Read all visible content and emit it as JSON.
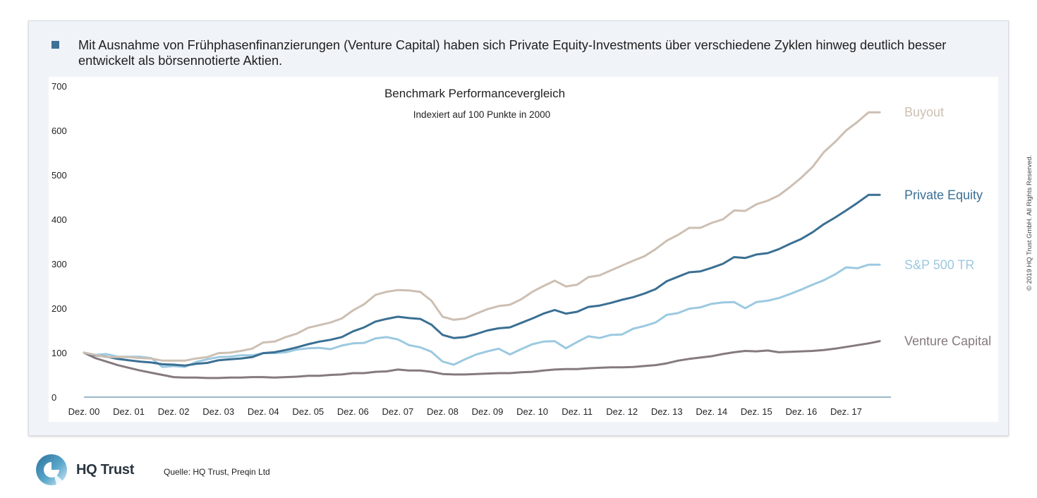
{
  "bullet": {
    "text": "Mit Ausnahme von Frühphasenfinanzierungen (Venture Capital) haben sich Private Equity-Investments über verschiedene Zyklen hinweg deutlich besser entwickelt als börsennotierte Aktien."
  },
  "copyright": "© 2019 HQ Trust GmbH. All Rights Reserved.",
  "logo": {
    "text": "HQ Trust"
  },
  "source": "Quelle: HQ Trust, Preqin Ltd",
  "chart_data": {
    "type": "line",
    "title": "Benchmark Performancevergleich",
    "subtitle": "Indexiert auf 100 Punkte in 2000",
    "ylim": [
      0,
      700
    ],
    "yticks": [
      0,
      100,
      200,
      300,
      400,
      500,
      600,
      700
    ],
    "x_range": [
      0,
      18
    ],
    "xtick_values": [
      0,
      1,
      2,
      3,
      4,
      5,
      6,
      7,
      8,
      9,
      10,
      11,
      12,
      13,
      14,
      15,
      16,
      17
    ],
    "xtick_labels": [
      "Dez. 00",
      "Dez. 01",
      "Dez. 02",
      "Dez. 03",
      "Dez. 04",
      "Dez. 05",
      "Dez. 06",
      "Dez. 07",
      "Dez. 08",
      "Dez. 09",
      "Dez. 10",
      "Dez. 11",
      "Dez. 12",
      "Dez. 13",
      "Dez. 14",
      "Dez. 15",
      "Dez. 16",
      "Dez. 17"
    ],
    "x": [
      0,
      0.25,
      0.5,
      0.75,
      1,
      1.25,
      1.5,
      1.75,
      2,
      2.25,
      2.5,
      2.75,
      3,
      3.25,
      3.5,
      3.75,
      4,
      4.25,
      4.5,
      4.75,
      5,
      5.25,
      5.5,
      5.75,
      6,
      6.25,
      6.5,
      6.75,
      7,
      7.25,
      7.5,
      7.75,
      8,
      8.25,
      8.5,
      8.75,
      9,
      9.25,
      9.5,
      9.75,
      10,
      10.25,
      10.5,
      10.75,
      11,
      11.25,
      11.5,
      11.75,
      12,
      12.25,
      12.5,
      12.75,
      13,
      13.25,
      13.5,
      13.75,
      14,
      14.25,
      14.5,
      14.75,
      15,
      15.25,
      15.5,
      15.75,
      16,
      16.25,
      16.5,
      16.75,
      17,
      17.25,
      17.5,
      17.75
    ],
    "series": [
      {
        "name": "Buyout",
        "color": "#cdbfb2",
        "values": [
          100,
          95,
          90,
          90,
          90,
          88,
          87,
          82,
          82,
          82,
          87,
          90,
          99,
          100,
          104,
          109,
          123,
          125,
          135,
          143,
          156,
          162,
          168,
          177,
          195,
          209,
          230,
          237,
          241,
          240,
          237,
          217,
          181,
          174,
          177,
          188,
          198,
          205,
          208,
          220,
          237,
          250,
          262,
          249,
          253,
          270,
          274,
          285,
          296,
          307,
          317,
          333,
          352,
          365,
          381,
          381,
          392,
          400,
          420,
          419,
          434,
          442,
          454,
          473,
          494,
          518,
          551,
          574,
          600,
          619,
          641,
          641
        ]
      },
      {
        "name": "Private Equity",
        "color": "#3a6f93",
        "values": [
          100,
          94,
          91,
          86,
          83,
          80,
          78,
          74,
          73,
          71,
          75,
          77,
          83,
          85,
          87,
          90,
          99,
          101,
          106,
          112,
          119,
          125,
          129,
          135,
          148,
          157,
          170,
          176,
          181,
          178,
          176,
          163,
          140,
          133,
          135,
          142,
          150,
          155,
          157,
          167,
          177,
          188,
          196,
          188,
          192,
          203,
          206,
          212,
          219,
          225,
          233,
          243,
          261,
          271,
          281,
          283,
          291,
          300,
          315,
          313,
          321,
          324,
          333,
          345,
          356,
          371,
          389,
          404,
          420,
          437,
          455,
          455
        ]
      },
      {
        "name": "S&P 500 TR",
        "color": "#9cc9e1",
        "values": [
          100,
          95,
          97,
          91,
          91,
          91,
          88,
          68,
          70,
          68,
          79,
          85,
          90,
          91,
          94,
          94,
          99,
          99,
          101,
          107,
          110,
          111,
          108,
          116,
          121,
          122,
          132,
          135,
          130,
          117,
          112,
          102,
          80,
          73,
          85,
          96,
          103,
          109,
          96,
          108,
          119,
          125,
          126,
          110,
          124,
          137,
          133,
          140,
          141,
          154,
          160,
          168,
          185,
          189,
          199,
          202,
          210,
          213,
          214,
          200,
          214,
          217,
          223,
          232,
          242,
          253,
          263,
          276,
          292,
          290,
          298,
          298
        ]
      },
      {
        "name": "Venture Capital",
        "color": "#857a7f",
        "values": [
          100,
          88,
          80,
          72,
          66,
          60,
          55,
          50,
          45,
          44,
          44,
          43,
          43,
          44,
          44,
          45,
          45,
          44,
          45,
          46,
          48,
          48,
          50,
          51,
          54,
          54,
          57,
          58,
          62,
          60,
          60,
          57,
          52,
          51,
          51,
          52,
          53,
          54,
          54,
          56,
          57,
          60,
          62,
          63,
          63,
          65,
          66,
          67,
          67,
          68,
          70,
          72,
          76,
          82,
          86,
          89,
          92,
          97,
          101,
          104,
          103,
          105,
          101,
          102,
          103,
          104,
          106,
          109,
          113,
          117,
          121,
          126
        ]
      }
    ]
  }
}
